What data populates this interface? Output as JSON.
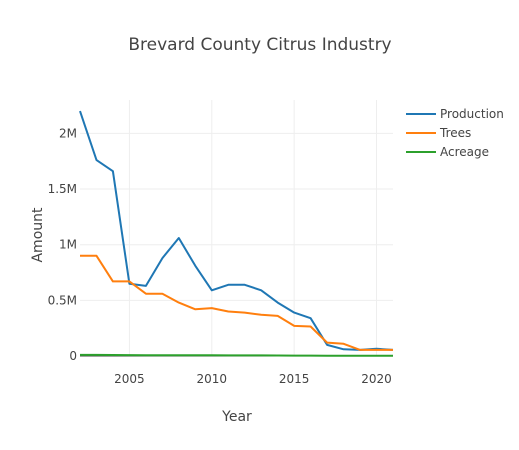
{
  "chart_data": {
    "type": "line",
    "title": "Brevard County Citrus Industry",
    "xlabel": "Year",
    "ylabel": "Amount",
    "xlim": [
      2002,
      2021
    ],
    "ylim": [
      0,
      2300000
    ],
    "x_ticks": [
      2005,
      2010,
      2015,
      2020
    ],
    "y_ticks": [
      0,
      500000,
      1000000,
      1500000,
      2000000
    ],
    "y_tick_labels": [
      "0",
      "0.5M",
      "1M",
      "1.5M",
      "2M"
    ],
    "grid": true,
    "legend_position": "top-right",
    "x": [
      2002,
      2003,
      2004,
      2005,
      2006,
      2007,
      2008,
      2009,
      2010,
      2011,
      2012,
      2013,
      2014,
      2015,
      2016,
      2017,
      2018,
      2019,
      2020,
      2021
    ],
    "series": [
      {
        "name": "Production",
        "color": "#1f77b4",
        "values": [
          2200000,
          1760000,
          1660000,
          650000,
          630000,
          880000,
          1060000,
          810000,
          590000,
          640000,
          640000,
          590000,
          480000,
          390000,
          340000,
          100000,
          60000,
          55000,
          65000,
          55000
        ]
      },
      {
        "name": "Trees",
        "color": "#ff7f0e",
        "values": [
          900000,
          900000,
          670000,
          670000,
          560000,
          560000,
          480000,
          420000,
          430000,
          400000,
          390000,
          370000,
          360000,
          270000,
          265000,
          120000,
          110000,
          55000,
          55000,
          55000
        ]
      },
      {
        "name": "Acreage",
        "color": "#2ca02c",
        "values": [
          10000,
          10000,
          9000,
          8000,
          7500,
          7000,
          6500,
          6000,
          6000,
          5500,
          5500,
          5000,
          4500,
          4000,
          3500,
          3000,
          3000,
          2500,
          2500,
          2500
        ]
      }
    ]
  }
}
